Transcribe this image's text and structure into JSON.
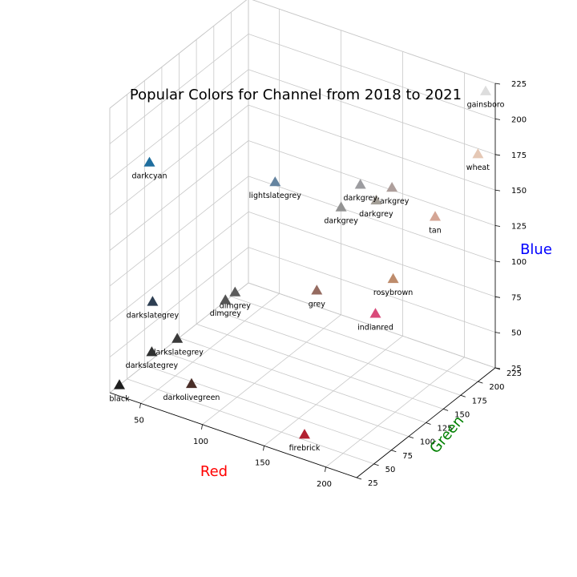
{
  "chart_data": {
    "type": "scatter",
    "title": "Popular Colors for Channel from 2018 to 2021",
    "xlabel": "Red",
    "ylabel": "Green",
    "zlabel": "Blue",
    "xlabel_color": "#ff0000",
    "ylabel_color": "#008000",
    "zlabel_color": "#0000ff",
    "grid": true,
    "marker": "triangle",
    "xlim": [
      25,
      225
    ],
    "ylim": [
      25,
      225
    ],
    "zlim": [
      25,
      225
    ],
    "xticks": [
      50,
      100,
      150,
      200
    ],
    "yticks": [
      25,
      50,
      75,
      100,
      125,
      150,
      175,
      200,
      225
    ],
    "zticks": [
      25,
      50,
      75,
      100,
      125,
      150,
      175,
      200,
      225
    ],
    "points": [
      {
        "label": "black",
        "r": 30,
        "g": 30,
        "b": 30,
        "color": "#1e1e1e"
      },
      {
        "label": "darkslategrey",
        "r": 45,
        "g": 50,
        "b": 50,
        "color": "#2f3030"
      },
      {
        "label": "darkolivegreen",
        "r": 80,
        "g": 45,
        "b": 40,
        "color": "#4a2e28"
      },
      {
        "label": "darkslategrey",
        "r": 60,
        "g": 60,
        "b": 60,
        "color": "#3a3a3a"
      },
      {
        "label": "darkslategrey",
        "r": 40,
        "g": 60,
        "b": 80,
        "color": "#2d3e52"
      },
      {
        "label": "dimgrey",
        "r": 85,
        "g": 85,
        "b": 85,
        "color": "#555555"
      },
      {
        "label": "dimgrey",
        "r": 90,
        "g": 90,
        "b": 90,
        "color": "#5a5a5a"
      },
      {
        "label": "darkcyan",
        "r": 15,
        "g": 100,
        "b": 155,
        "color": "#1f6e9e"
      },
      {
        "label": "lightslategrey",
        "r": 100,
        "g": 130,
        "b": 155,
        "color": "#6584a0"
      },
      {
        "label": "firebrick",
        "r": 180,
        "g": 30,
        "b": 40,
        "color": "#b22030"
      },
      {
        "label": "grey",
        "r": 145,
        "g": 110,
        "b": 100,
        "color": "#956b60"
      },
      {
        "label": "indianred",
        "r": 215,
        "g": 70,
        "b": 120,
        "color": "#d94a7a"
      },
      {
        "label": "rosybrown",
        "r": 190,
        "g": 140,
        "b": 110,
        "color": "#be8c6c"
      },
      {
        "label": "darkgrey",
        "r": 145,
        "g": 145,
        "b": 145,
        "color": "#939393"
      },
      {
        "label": "darkgrey",
        "r": 155,
        "g": 155,
        "b": 160,
        "color": "#9c9ca0"
      },
      {
        "label": "darkgrey",
        "r": 165,
        "g": 160,
        "b": 150,
        "color": "#a39e96"
      },
      {
        "label": "darkgrey",
        "r": 175,
        "g": 165,
        "b": 160,
        "color": "#ae9f9c"
      },
      {
        "label": "tan",
        "r": 210,
        "g": 165,
        "b": 150,
        "color": "#d4a595"
      },
      {
        "label": "wheat",
        "r": 225,
        "g": 200,
        "b": 185,
        "color": "#e5c8b5"
      },
      {
        "label": "gainsboro",
        "r": 220,
        "g": 220,
        "b": 220,
        "color": "#dddddd"
      }
    ]
  }
}
